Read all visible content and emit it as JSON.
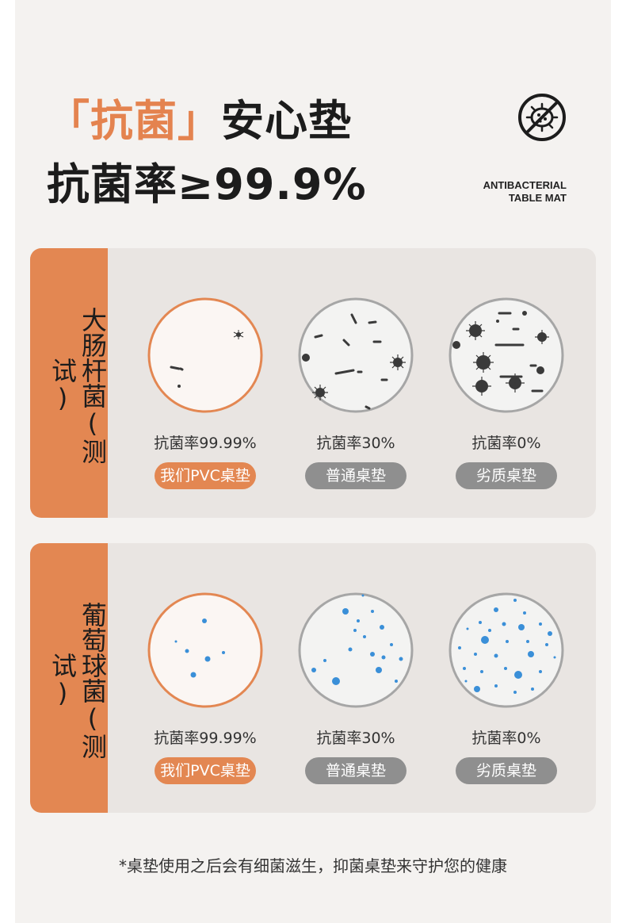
{
  "header": {
    "title_bracket_open": "「",
    "title_accent": "抗菌",
    "title_bracket_close": "」",
    "title_rest": "安心垫",
    "subtitle": "抗菌率≥99.9%",
    "badge_line1": "ANTIBACTERIAL",
    "badge_line2": "TABLE MAT",
    "badge_icon": "no-bacteria-icon"
  },
  "cards": [
    {
      "side_label": "大肠杆菌(测试)",
      "columns": [
        {
          "rate": "抗菌率99.99%",
          "label": "我们PVC桌垫",
          "pill_color": "#e38752"
        },
        {
          "rate": "抗菌率30%",
          "label": "普通桌垫",
          "pill_color": "#8f8f8f"
        },
        {
          "rate": "抗菌率0%",
          "label": "劣质桌垫",
          "pill_color": "#8f8f8f"
        }
      ]
    },
    {
      "side_label": "葡萄球菌(测试)",
      "columns": [
        {
          "rate": "抗菌率99.99%",
          "label": "我们PVC桌垫",
          "pill_color": "#e38752"
        },
        {
          "rate": "抗菌率30%",
          "label": "普通桌垫",
          "pill_color": "#8f8f8f"
        },
        {
          "rate": "抗菌率0%",
          "label": "劣质桌垫",
          "pill_color": "#8f8f8f"
        }
      ]
    }
  ],
  "footnote": "*桌垫使用之后会有细菌滋生，抑菌桌垫来守护您的健康",
  "colors": {
    "accent": "#e38752",
    "card_bg": "#e9e5e2",
    "page_bg": "#f4f2f0",
    "bacteria_dark": "#3a3a3a",
    "bacteria_blue": "#3a8fd8"
  }
}
